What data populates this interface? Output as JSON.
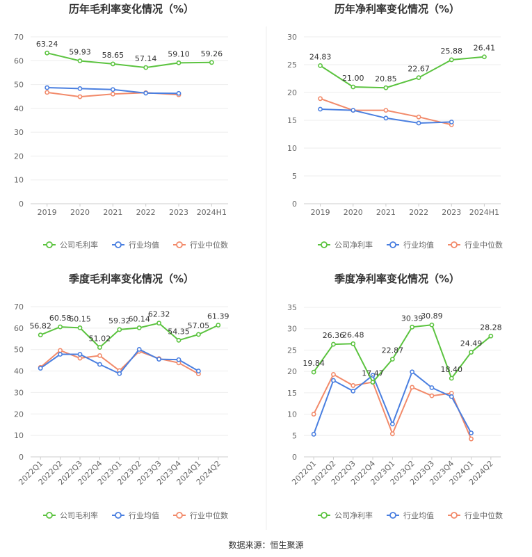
{
  "source": "数据来源：恒生聚源",
  "colors": {
    "company": "#5bc33f",
    "industry_avg": "#4a7fe0",
    "industry_median": "#f28a6a"
  },
  "chart_data": [
    {
      "type": "line",
      "title": "历年毛利率变化情况（%）",
      "categories": [
        "2019",
        "2020",
        "2021",
        "2022",
        "2023",
        "2024H1"
      ],
      "ylim": [
        0,
        70
      ],
      "yticks": [
        0,
        10,
        20,
        30,
        40,
        50,
        60,
        70
      ],
      "rotate_x": false,
      "series": [
        {
          "name": "公司毛利率",
          "key": "company",
          "labels": true,
          "values": [
            63.24,
            59.93,
            58.65,
            57.14,
            59.1,
            59.26
          ],
          "label_text": [
            "63.24",
            "59.93",
            "58.65",
            "57.14",
            "59.10",
            "59.26"
          ]
        },
        {
          "name": "行业均值",
          "key": "industry_avg",
          "labels": false,
          "values": [
            48.7,
            48.3,
            47.9,
            46.4,
            46.3,
            null
          ]
        },
        {
          "name": "行业中位数",
          "key": "industry_median",
          "labels": false,
          "values": [
            46.7,
            44.9,
            46.0,
            46.6,
            45.7,
            null
          ]
        }
      ]
    },
    {
      "type": "line",
      "title": "历年净利率变化情况（%）",
      "categories": [
        "2019",
        "2020",
        "2021",
        "2022",
        "2023",
        "2024H1"
      ],
      "ylim": [
        0,
        30
      ],
      "yticks": [
        0,
        5,
        10,
        15,
        20,
        25,
        30
      ],
      "rotate_x": false,
      "series": [
        {
          "name": "公司净利率",
          "key": "company",
          "labels": true,
          "values": [
            24.83,
            21.0,
            20.85,
            22.67,
            25.88,
            26.41
          ],
          "label_text": [
            "24.83",
            "21.00",
            "20.85",
            "22.67",
            "25.88",
            "26.41"
          ]
        },
        {
          "name": "行业均值",
          "key": "industry_avg",
          "labels": false,
          "values": [
            17.0,
            16.8,
            15.4,
            14.5,
            14.7,
            null
          ]
        },
        {
          "name": "行业中位数",
          "key": "industry_median",
          "labels": false,
          "values": [
            18.9,
            16.8,
            16.8,
            15.6,
            14.2,
            null
          ]
        }
      ]
    },
    {
      "type": "line",
      "title": "季度毛利率变化情况（%）",
      "categories": [
        "2022Q1",
        "2022Q2",
        "2022Q3",
        "2022Q4",
        "2023Q1",
        "2023Q2",
        "2023Q3",
        "2023Q4",
        "2024Q1",
        "2024Q2"
      ],
      "ylim": [
        0,
        70
      ],
      "yticks": [
        0,
        10,
        20,
        30,
        40,
        50,
        60,
        70
      ],
      "rotate_x": true,
      "series": [
        {
          "name": "公司毛利率",
          "key": "company",
          "labels": true,
          "values": [
            56.82,
            60.58,
            60.15,
            51.02,
            59.32,
            60.14,
            62.32,
            54.35,
            57.05,
            61.39
          ],
          "label_text": [
            "56.82",
            "60.58",
            "60.15",
            "51.02",
            "59.32",
            "60.14",
            "62.32",
            "54.35",
            "57.05",
            "61.39"
          ]
        },
        {
          "name": "行业均值",
          "key": "industry_avg",
          "labels": false,
          "values": [
            41.3,
            47.8,
            47.8,
            43.1,
            38.8,
            50.1,
            45.5,
            45.3,
            40.0,
            null
          ]
        },
        {
          "name": "行业中位数",
          "key": "industry_median",
          "labels": false,
          "values": [
            41.7,
            49.6,
            46.0,
            47.2,
            40.2,
            49.2,
            45.8,
            43.8,
            38.7,
            null
          ]
        }
      ]
    },
    {
      "type": "line",
      "title": "季度净利率变化情况（%）",
      "categories": [
        "2022Q1",
        "2022Q2",
        "2022Q3",
        "2022Q4",
        "2023Q1",
        "2023Q2",
        "2023Q3",
        "2023Q4",
        "2024Q1",
        "2024Q2"
      ],
      "ylim": [
        0,
        35
      ],
      "yticks": [
        0,
        5,
        10,
        15,
        20,
        25,
        30,
        35
      ],
      "rotate_x": true,
      "series": [
        {
          "name": "公司净利率",
          "key": "company",
          "labels": true,
          "values": [
            19.84,
            26.36,
            26.48,
            17.47,
            22.87,
            30.39,
            30.89,
            18.4,
            24.49,
            28.28
          ],
          "label_text": [
            "19.84",
            "26.36",
            "26.48",
            "17.47",
            "22.87",
            "30.39",
            "30.89",
            "18.40",
            "24.49",
            "28.28"
          ]
        },
        {
          "name": "行业均值",
          "key": "industry_avg",
          "labels": false,
          "values": [
            5.3,
            17.9,
            15.4,
            19.1,
            7.7,
            19.9,
            16.2,
            14.1,
            5.6,
            null
          ]
        },
        {
          "name": "行业中位数",
          "key": "industry_median",
          "labels": false,
          "values": [
            10.0,
            19.3,
            16.7,
            17.5,
            5.4,
            16.3,
            14.3,
            14.9,
            4.2,
            null
          ]
        }
      ]
    }
  ]
}
